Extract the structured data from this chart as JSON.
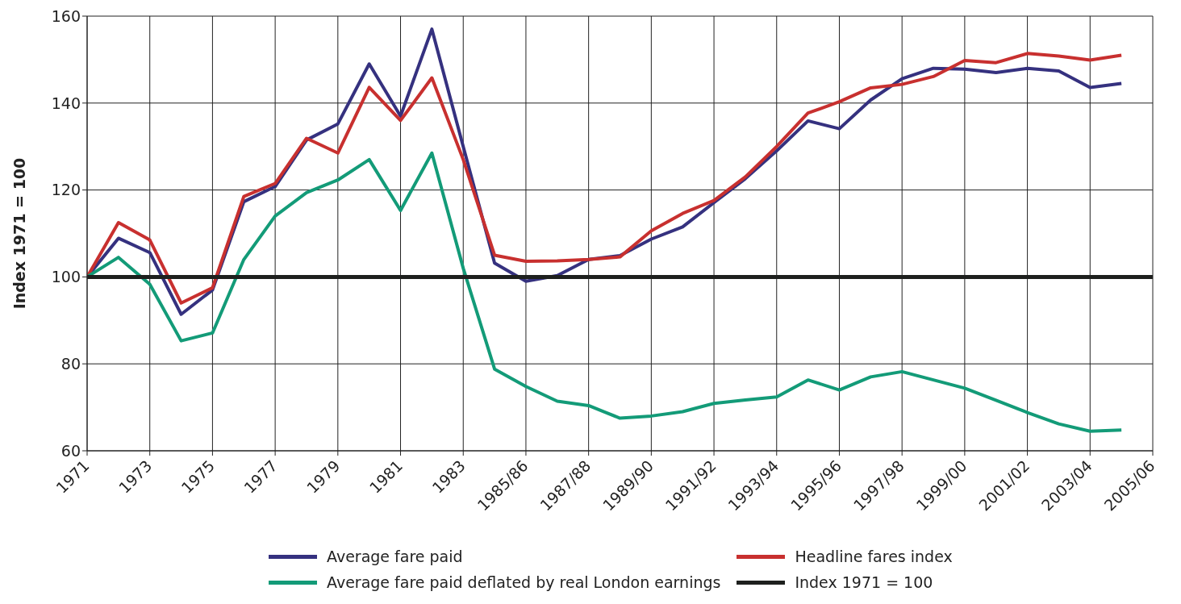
{
  "chart_data": {
    "type": "line",
    "ylabel": "Index 1971 = 100",
    "categories": [
      "1971",
      null,
      "1973",
      null,
      "1975",
      null,
      "1977",
      null,
      "1979",
      null,
      "1981",
      null,
      "1983",
      null,
      "1985/86",
      null,
      "1987/88",
      null,
      "1989/90",
      null,
      "1991/92",
      null,
      "1993/94",
      null,
      "1995/96",
      null,
      "1997/98",
      null,
      "1999/00",
      null,
      "2001/02",
      null,
      "2003/04",
      null,
      "2005/06"
    ],
    "series": [
      {
        "name": "Average fare paid",
        "color": "#35317f",
        "values": [
          100,
          108.9,
          105.6,
          91.4,
          97,
          117.3,
          120.8,
          131.5,
          135.2,
          149,
          137,
          157,
          130,
          103.2,
          99,
          100.3,
          104,
          104.9,
          108.7,
          111.5,
          117.1,
          122.6,
          129,
          135.9,
          134.1,
          140.7,
          145.6,
          148,
          147.8,
          147,
          148,
          147.4,
          143.6,
          144.5,
          null
        ]
      },
      {
        "name": "Headline fares index",
        "color": "#c8302f",
        "values": [
          100,
          112.5,
          108.5,
          94,
          97.5,
          118.5,
          121.5,
          131.9,
          128.5,
          143.6,
          136,
          145.8,
          127,
          105,
          103.6,
          103.7,
          104,
          104.6,
          110.6,
          114.6,
          117.6,
          123,
          130,
          137.7,
          140.3,
          143.5,
          144.3,
          146.1,
          149.8,
          149.3,
          151.4,
          150.8,
          149.9,
          151,
          null
        ]
      },
      {
        "name": "Average fare paid deflated by real London earnings",
        "color": "#139b78",
        "values": [
          100,
          104.5,
          98.3,
          85.3,
          87.1,
          104,
          114,
          119.4,
          122.3,
          127,
          115.3,
          128.5,
          102,
          78.8,
          74.8,
          71.4,
          70.4,
          67.5,
          68,
          69,
          70.9,
          71.7,
          72.4,
          76.3,
          74,
          77,
          78.2,
          76.3,
          74.4,
          71.6,
          68.8,
          66.2,
          64.5,
          64.8,
          null
        ]
      },
      {
        "name": "Index 1971 = 100",
        "color": "#1e201e",
        "values": [
          100,
          100,
          100,
          100,
          100,
          100,
          100,
          100,
          100,
          100,
          100,
          100,
          100,
          100,
          100,
          100,
          100,
          100,
          100,
          100,
          100,
          100,
          100,
          100,
          100,
          100,
          100,
          100,
          100,
          100,
          100,
          100,
          100,
          100,
          100
        ]
      }
    ],
    "ylim": [
      60,
      160
    ],
    "yticks": [
      60,
      80,
      100,
      120,
      140,
      160
    ],
    "grid": true,
    "legend": "bottom"
  }
}
